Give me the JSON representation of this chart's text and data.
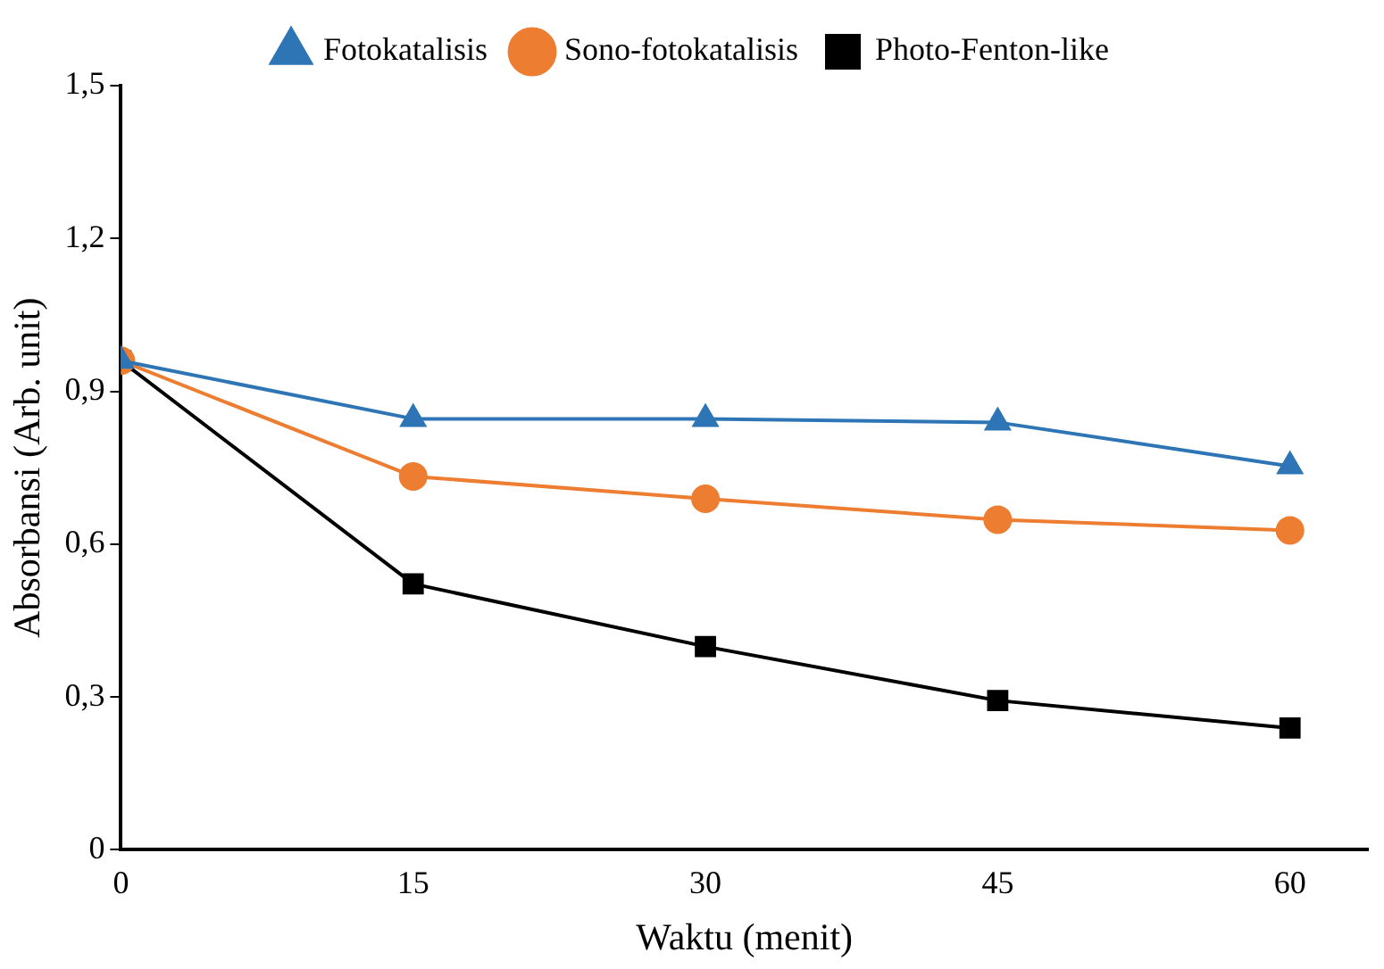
{
  "chart_data": {
    "type": "line",
    "xlabel": "Waktu (menit)",
    "ylabel": "Absorbansi (Arb. unit)",
    "x": [
      0,
      15,
      30,
      45,
      60
    ],
    "xlim": [
      0,
      64
    ],
    "xticks": [
      0,
      15,
      30,
      45,
      60
    ],
    "ylim": [
      0,
      1.5
    ],
    "yticks": [
      {
        "value": 0,
        "label": "0"
      },
      {
        "value": 0.3,
        "label": "0,3"
      },
      {
        "value": 0.6,
        "label": "0,6"
      },
      {
        "value": 0.9,
        "label": "0,9"
      },
      {
        "value": 1.2,
        "label": "1,2"
      },
      {
        "value": 1.5,
        "label": "1,5"
      }
    ],
    "grid": false,
    "legend": "top",
    "line_style": "solid",
    "series": [
      {
        "name": "Fotokatalisis",
        "color": "#2e75b6",
        "marker": "triangle",
        "values": [
          0.96,
          0.846,
          0.846,
          0.839,
          0.753
        ]
      },
      {
        "name": "Sono-fotokatalisis",
        "color": "#ed7d31",
        "marker": "circle",
        "values": [
          0.96,
          0.733,
          0.689,
          0.648,
          0.627
        ]
      },
      {
        "name": "Photo-Fenton-like",
        "color": "#000000",
        "marker": "square",
        "values": [
          0.96,
          0.522,
          0.399,
          0.293,
          0.239
        ]
      }
    ]
  }
}
